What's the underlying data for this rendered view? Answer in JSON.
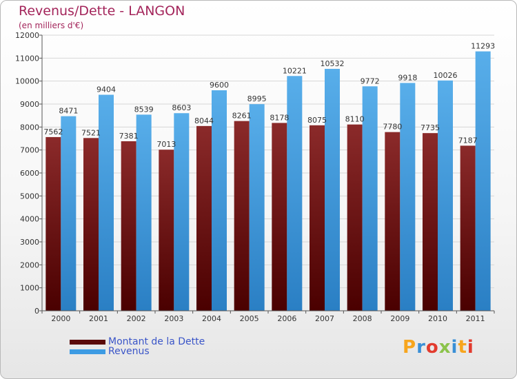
{
  "title": "Revenus/Dette - LANGON",
  "subtitle": "(en milliers d'€)",
  "logo": {
    "letters": [
      "P",
      "r",
      "o",
      "x",
      "i",
      "t",
      "i"
    ],
    "colors": [
      "#f7a51d",
      "#3a8fd6",
      "#e23b2e",
      "#8bc34a",
      "#3a8fd6",
      "#f7a51d",
      "#e23b2e"
    ]
  },
  "chart_data": {
    "type": "bar",
    "categories": [
      "2000",
      "2001",
      "2002",
      "2003",
      "2004",
      "2005",
      "2006",
      "2007",
      "2008",
      "2009",
      "2010",
      "2011"
    ],
    "ylim": [
      0,
      12000
    ],
    "yticks": [
      0,
      1000,
      2000,
      3000,
      4000,
      5000,
      6000,
      7000,
      8000,
      9000,
      10000,
      11000,
      12000
    ],
    "legend_position": "bottom-left",
    "series": [
      {
        "name": "Montant de la Dette",
        "color": "#7a1515",
        "values": [
          7562,
          7521,
          7381,
          7013,
          8044,
          8261,
          8178,
          8075,
          8110,
          7780,
          7735,
          7187
        ]
      },
      {
        "name": "Revenus",
        "color": "#3d9be3",
        "values": [
          8471,
          9404,
          8539,
          8603,
          9600,
          8995,
          10221,
          10532,
          9772,
          9918,
          10026,
          11293
        ]
      }
    ]
  }
}
